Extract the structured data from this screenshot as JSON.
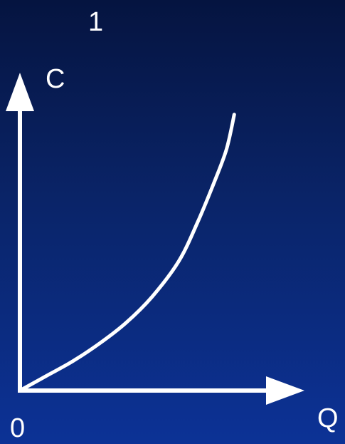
{
  "panel_number": "1",
  "colors": {
    "background_top": "#051440",
    "background_bottom": "#0c3296",
    "foreground": "#ffffff"
  },
  "chart_data": {
    "type": "line",
    "title": "",
    "xlabel": "Q",
    "ylabel": "C",
    "origin_label": "0",
    "xlim": [
      0,
      10
    ],
    "ylim": [
      0,
      10
    ],
    "grid": false,
    "ticks": false,
    "series": [
      {
        "x": [
          0,
          1,
          2,
          3,
          4,
          5,
          6,
          6.7,
          7.3,
          7.8,
          8.1
        ],
        "y": [
          0,
          0.5,
          1.0,
          1.6,
          2.3,
          3.2,
          4.4,
          5.7,
          7.0,
          8.2,
          9.4
        ]
      }
    ]
  }
}
